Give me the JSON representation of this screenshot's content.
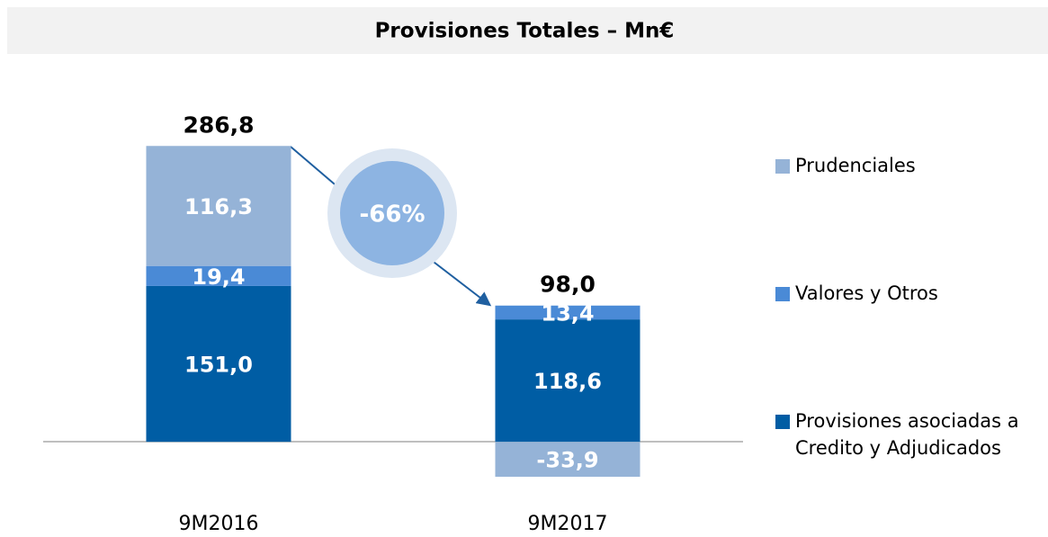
{
  "chart_data": {
    "type": "stacked_bar",
    "title": "Provisiones Totales – Mn€",
    "categories": [
      "9M2016",
      "9M2017"
    ],
    "series": [
      {
        "name": "Provisiones asociadas a Credito y Adjudicados",
        "color": "#005da4",
        "values": [
          151.0,
          118.6
        ],
        "value_labels": [
          "151,0",
          "118,6"
        ]
      },
      {
        "name": "Valores y Otros",
        "color": "#4a8ad6",
        "values": [
          19.4,
          13.4
        ],
        "value_labels": [
          "19,4",
          "13,4"
        ]
      },
      {
        "name": "Prudenciales",
        "color": "#95b3d7",
        "values": [
          116.3,
          -33.9
        ],
        "value_labels": [
          "116,3",
          "-33,9"
        ]
      }
    ],
    "totals": [
      286.8,
      98.0
    ],
    "total_labels": [
      "286,8",
      "98,0"
    ],
    "annotation": "-66%",
    "ylim": [
      -60,
      300
    ],
    "legend": "right"
  }
}
